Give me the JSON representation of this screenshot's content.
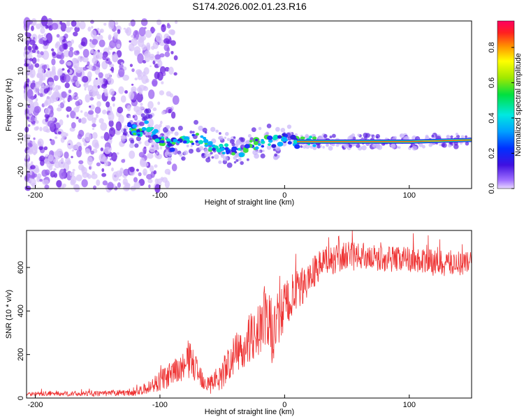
{
  "title": "S174.2026.002.01.23.R16",
  "chart_data": [
    {
      "type": "heatmap",
      "name": "spectrogram",
      "xlabel": "Height of straight line (km)",
      "ylabel": "Frequency (Hz)",
      "xlim": [
        -207,
        150
      ],
      "ylim": [
        -25,
        25
      ],
      "xticks": [
        -200,
        -100,
        0,
        100
      ],
      "yticks": [
        20,
        10,
        0,
        -10,
        -20
      ],
      "signal_track": {
        "x": [
          -125,
          -115,
          -110,
          -100,
          -90,
          -80,
          -70,
          -60,
          -50,
          -40,
          -30,
          -20,
          -10,
          0,
          10,
          20,
          50,
          100,
          150
        ],
        "freq": [
          -7,
          -8,
          -6,
          -11,
          -12,
          -11,
          -10,
          -12,
          -13,
          -14,
          -13,
          -11,
          -11,
          -10,
          -11,
          -11,
          -11,
          -11,
          -10.5
        ]
      },
      "colorbar": {
        "label": "Normalized spectral amplitude",
        "range": [
          0.0,
          0.95
        ],
        "ticks": [
          "0.0",
          "0.2",
          "0.4",
          "0.6",
          "0.8"
        ]
      }
    },
    {
      "type": "line",
      "name": "snr",
      "xlabel": "Height of straight line (km)",
      "ylabel": "SNR (10 * v/v)",
      "xlim": [
        -207,
        150
      ],
      "ylim": [
        0,
        770
      ],
      "xticks": [
        -200,
        -100,
        0,
        100
      ],
      "yticks": [
        0,
        200,
        400,
        600
      ],
      "color": "#ee3333",
      "envelope": {
        "x": [
          -207,
          -150,
          -120,
          -110,
          -100,
          -90,
          -80,
          -75,
          -70,
          -60,
          -50,
          -40,
          -30,
          -20,
          -15,
          -10,
          -5,
          0,
          5,
          10,
          20,
          30,
          40,
          50,
          60,
          80,
          100,
          120,
          150
        ],
        "mean": [
          20,
          20,
          25,
          45,
          80,
          110,
          150,
          180,
          120,
          60,
          110,
          200,
          260,
          320,
          380,
          300,
          360,
          420,
          460,
          470,
          560,
          620,
          640,
          650,
          650,
          640,
          640,
          620,
          620
        ],
        "spread": [
          10,
          12,
          15,
          30,
          50,
          60,
          70,
          90,
          60,
          50,
          70,
          90,
          110,
          130,
          160,
          150,
          140,
          120,
          110,
          100,
          80,
          70,
          70,
          70,
          60,
          60,
          60,
          60,
          60
        ]
      }
    }
  ]
}
